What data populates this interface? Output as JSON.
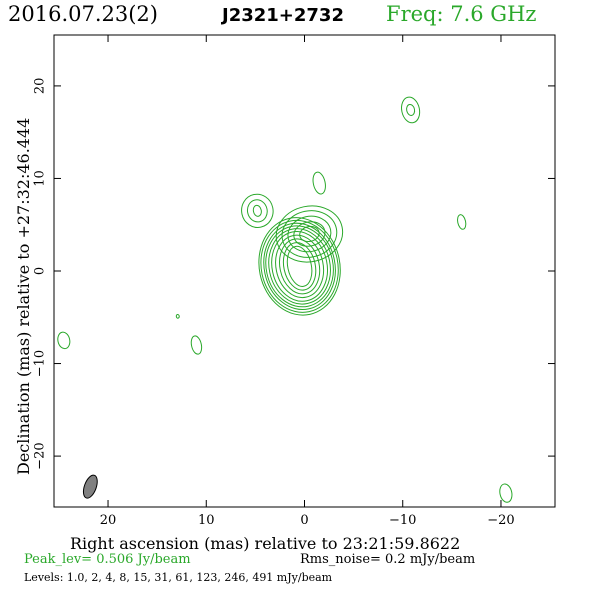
{
  "header": {
    "date": "2016.07.23(2)",
    "source": "J2321+2732",
    "freq": "Freq: 7.6 GHz"
  },
  "footer": {
    "peak": "Peak_lev=  0.506 Jy/beam",
    "rms": "Rms_noise=  0.2 mJy/beam",
    "levels": "Levels: 1.0,   2,   4,   8,  15,  31,  61, 123, 246, 491 mJy/beam"
  },
  "colors": {
    "contour": "#2aa82a",
    "beam": "#808080",
    "axes": "#000000"
  },
  "chart_data": {
    "type": "contour",
    "xlabel": "Right ascension (mas) relative to 23:21:59.8622",
    "ylabel": "Declination (mas) relative to +27:32:46.444",
    "xlim": [
      25.5,
      -25.5
    ],
    "ylim": [
      -25.5,
      25.5
    ],
    "xticks": [
      20,
      10,
      0,
      -10,
      -20
    ],
    "xtick_labels": [
      "20",
      "10",
      "0",
      "−10",
      "−20"
    ],
    "yticks": [
      20,
      10,
      0,
      -10,
      -20
    ],
    "ytick_labels": [
      "20",
      "10",
      "0",
      "−10",
      "−20"
    ],
    "levels_mJy": [
      1.0,
      2,
      4,
      8,
      15,
      31,
      61,
      123,
      246,
      491
    ],
    "peak_Jy_per_beam": 0.506,
    "rms_mJy_per_beam": 0.2,
    "components": [
      {
        "x": 0.5,
        "y": 0.5,
        "rx": [
          1.2,
          1.6,
          2.0,
          2.4,
          2.8,
          3.1,
          3.4,
          3.6,
          3.9,
          4.1
        ],
        "ry": [
          2.2,
          2.6,
          3.0,
          3.4,
          3.8,
          4.1,
          4.4,
          4.7,
          5.0,
          5.3
        ],
        "n": 10
      },
      {
        "x": -0.5,
        "y": 4.0,
        "rx": [
          1.0,
          1.6,
          2.2,
          2.8,
          3.4
        ],
        "ry": [
          0.8,
          1.3,
          1.9,
          2.5,
          3.0
        ],
        "n": 5
      },
      {
        "x": 4.8,
        "y": 6.5,
        "rx": [
          0.4,
          1.0,
          1.6
        ],
        "ry": [
          0.6,
          1.2,
          1.8
        ],
        "n": 3
      },
      {
        "x": -1.5,
        "y": 9.5,
        "rx": [
          0.6
        ],
        "ry": [
          1.2
        ],
        "n": 1
      },
      {
        "x": -10.8,
        "y": 17.4,
        "rx": [
          0.4,
          0.9
        ],
        "ry": [
          0.6,
          1.4
        ],
        "n": 2
      },
      {
        "x": -16.0,
        "y": 5.3,
        "rx": [
          0.4
        ],
        "ry": [
          0.8
        ],
        "n": 1
      },
      {
        "x": 24.5,
        "y": -7.5,
        "rx": [
          0.6
        ],
        "ry": [
          0.9
        ],
        "n": 1
      },
      {
        "x": 11.0,
        "y": -8.0,
        "rx": [
          0.5
        ],
        "ry": [
          1.0
        ],
        "n": 1
      },
      {
        "x": 12.9,
        "y": -4.9,
        "rx": [
          0.15
        ],
        "ry": [
          0.2
        ],
        "n": 1
      },
      {
        "x": -20.5,
        "y": -24.0,
        "rx": [
          0.6
        ],
        "ry": [
          1.0
        ],
        "n": 1
      }
    ],
    "beam": {
      "x": 21.8,
      "y": -23.3,
      "major_mas": 2.6,
      "minor_mas": 1.2,
      "pa_deg": 20
    }
  }
}
